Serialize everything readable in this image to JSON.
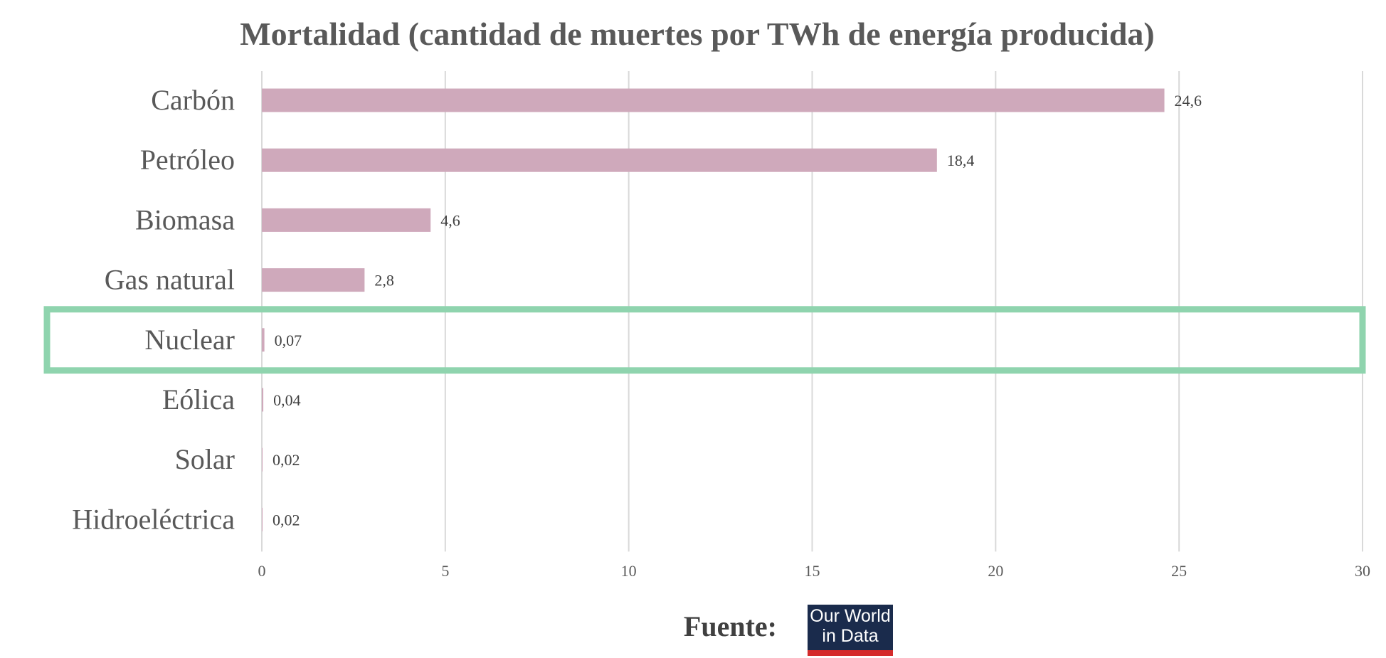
{
  "chart_data": {
    "type": "bar",
    "orientation": "horizontal",
    "title": "Mortalidad (cantidad de muertes por TWh de energía producida)",
    "categories": [
      "Carbón",
      "Petróleo",
      "Biomasa",
      "Gas natural",
      "Nuclear",
      "Eólica",
      "Solar",
      "Hidroeléctrica"
    ],
    "values": [
      24.6,
      18.4,
      4.6,
      2.8,
      0.07,
      0.04,
      0.02,
      0.02
    ],
    "value_labels": [
      "24,6",
      "18,4",
      "4,6",
      "2,8",
      "0,07",
      "0,04",
      "0,02",
      "0,02"
    ],
    "xlim": [
      0,
      30
    ],
    "x_ticks": [
      0,
      5,
      10,
      15,
      20,
      25,
      30
    ],
    "x_tick_labels": [
      "0",
      "5",
      "10",
      "15",
      "20",
      "25",
      "30"
    ],
    "grid": true,
    "highlighted_category": "Nuclear",
    "colors": {
      "bar": "#cfa9bb",
      "highlight_box": "#8fd4ae",
      "grid": "#d9d9d9"
    }
  },
  "footer": {
    "source_label": "Fuente:",
    "logo_line1": "Our World",
    "logo_line2": "in Data",
    "logo_bg": "#1a2b4c",
    "logo_accent": "#d42b2b"
  }
}
